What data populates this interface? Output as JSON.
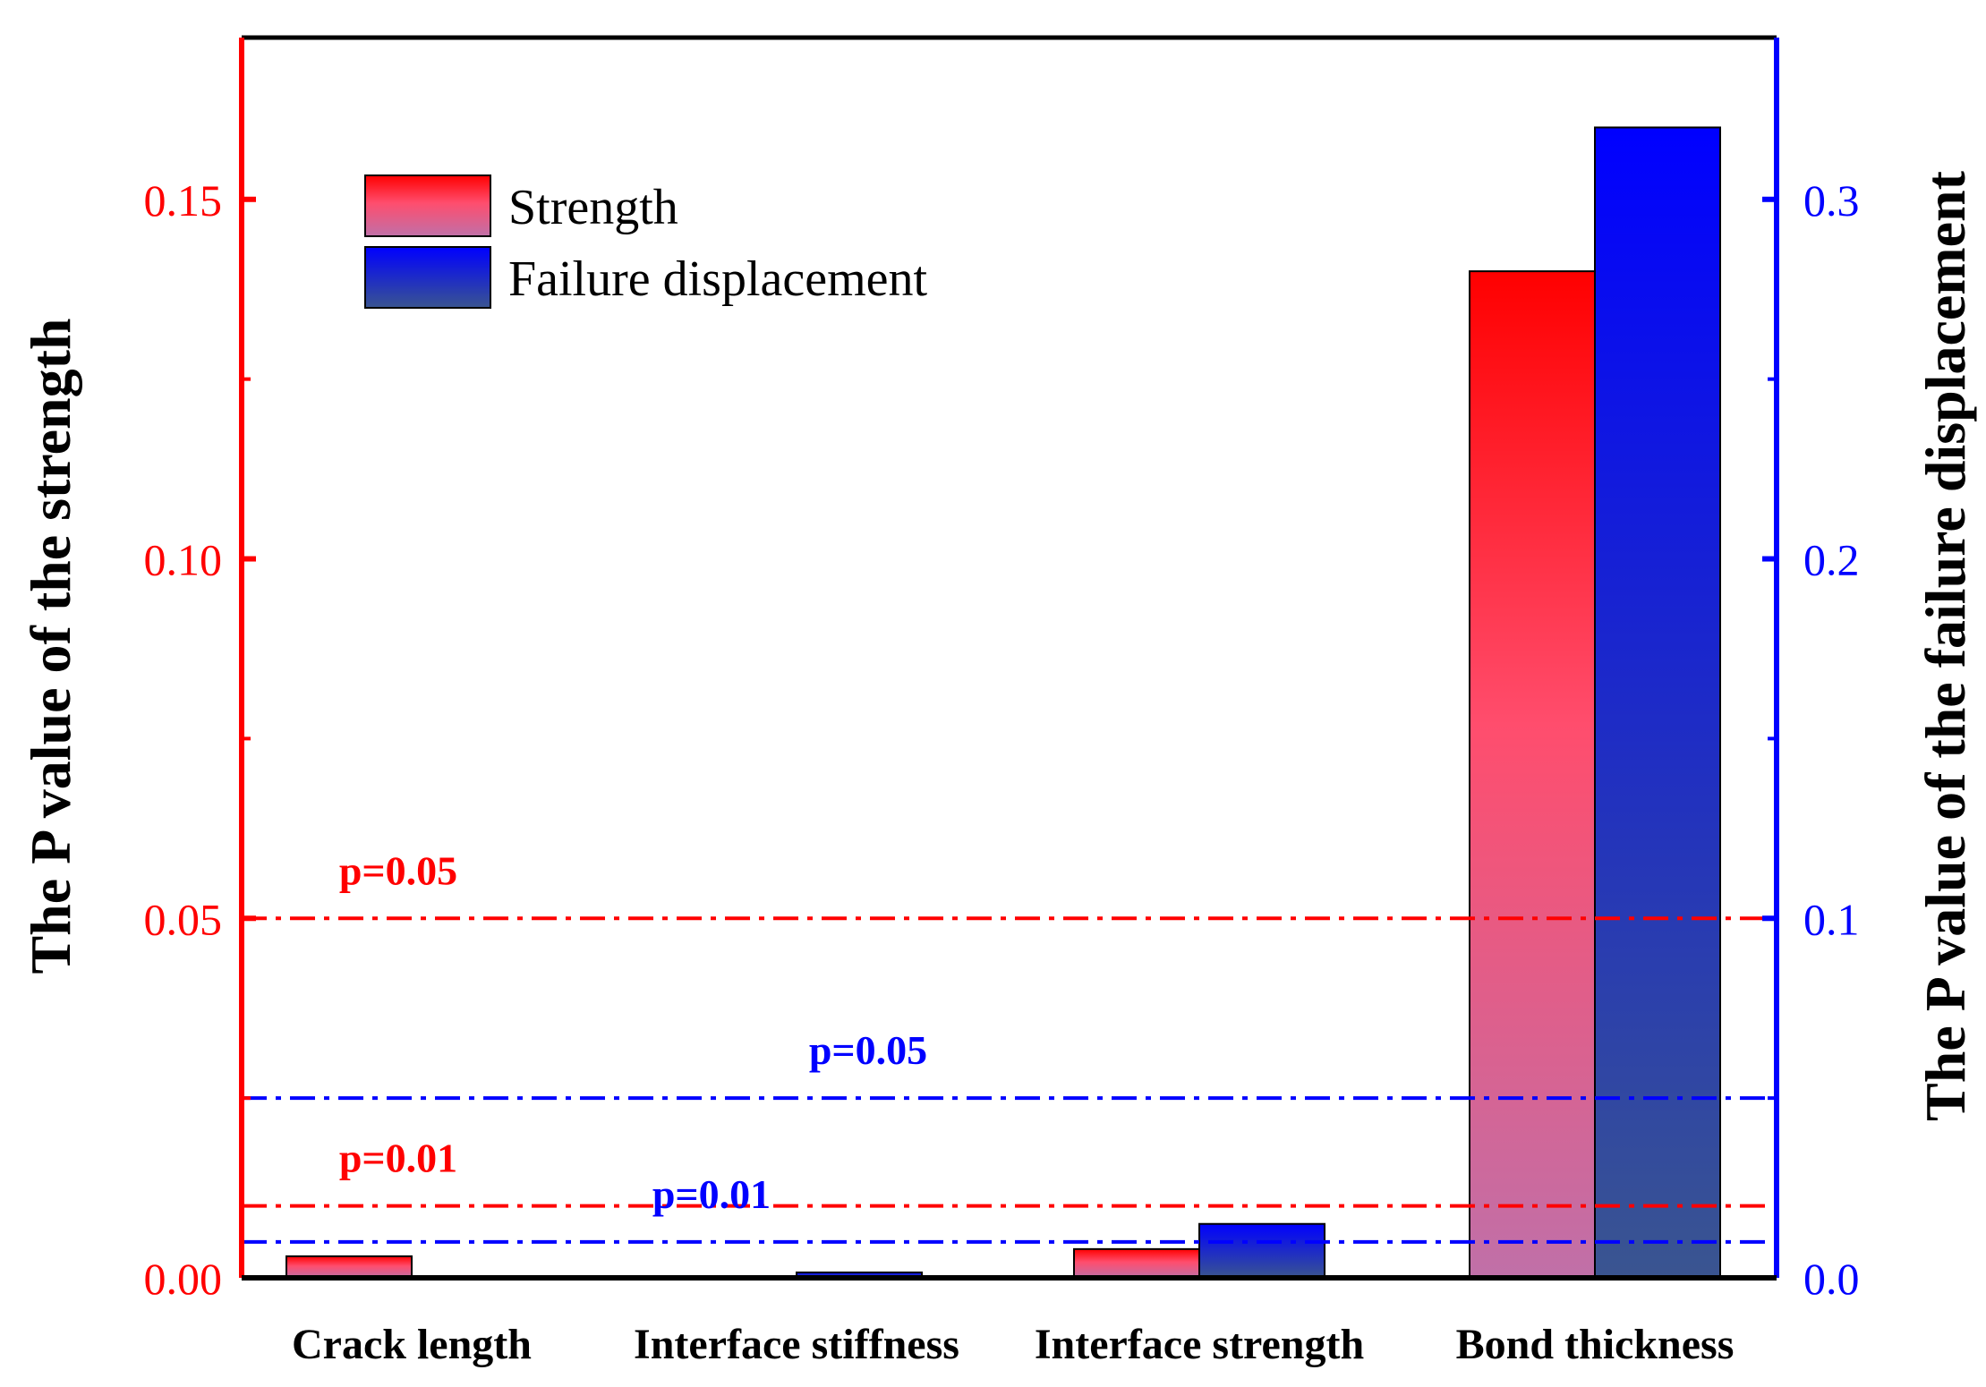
{
  "chart_data": {
    "type": "bar",
    "categories": [
      "Crack length",
      "Interface stiffness",
      "Interface strength",
      "Bond thickness"
    ],
    "series": [
      {
        "name": "Strength",
        "axis": "left",
        "values": [
          0.003,
          0.0,
          0.004,
          0.14
        ]
      },
      {
        "name": "Failure displacement",
        "axis": "right",
        "values": [
          0.0,
          0.0015,
          0.015,
          0.32
        ]
      }
    ],
    "left_axis": {
      "label": "The P value of the strength",
      "ylim": [
        0,
        0.1725
      ],
      "ticks": [
        0.0,
        0.05,
        0.1,
        0.15
      ],
      "tick_labels": [
        "0.00",
        "0.05",
        "0.10",
        "0.15"
      ],
      "color": "#ff0000"
    },
    "right_axis": {
      "label": "The P value of the failure displacement",
      "ylim": [
        0,
        0.345
      ],
      "ticks": [
        0.0,
        0.1,
        0.2,
        0.3
      ],
      "tick_labels": [
        "0.0",
        "0.1",
        "0.2",
        "0.3"
      ],
      "color": "#0000ff"
    },
    "reference_lines": [
      {
        "axis": "left",
        "value": 0.05,
        "label": "p=0.05",
        "label_anchor": 0.7,
        "color": "#ff0000"
      },
      {
        "axis": "left",
        "value": 0.01,
        "label": "p=0.01",
        "label_anchor": 0.7,
        "color": "#ff0000"
      },
      {
        "axis": "right",
        "value": 0.05,
        "label": "p=0.05",
        "label_anchor": 2.2,
        "color": "#0000ff"
      },
      {
        "axis": "right",
        "value": 0.01,
        "label": "p=0.01",
        "label_anchor": 1.7,
        "color": "#0000ff"
      }
    ],
    "legend": {
      "position": "top-left",
      "entries": [
        "Strength",
        "Failure displacement"
      ]
    },
    "colors": {
      "strength_top": "#ff0000",
      "strength_mid": "#ff4d6d",
      "strength_bottom": "#c070a8",
      "disp_top": "#0000ff",
      "disp_bottom": "#3a5590"
    }
  }
}
